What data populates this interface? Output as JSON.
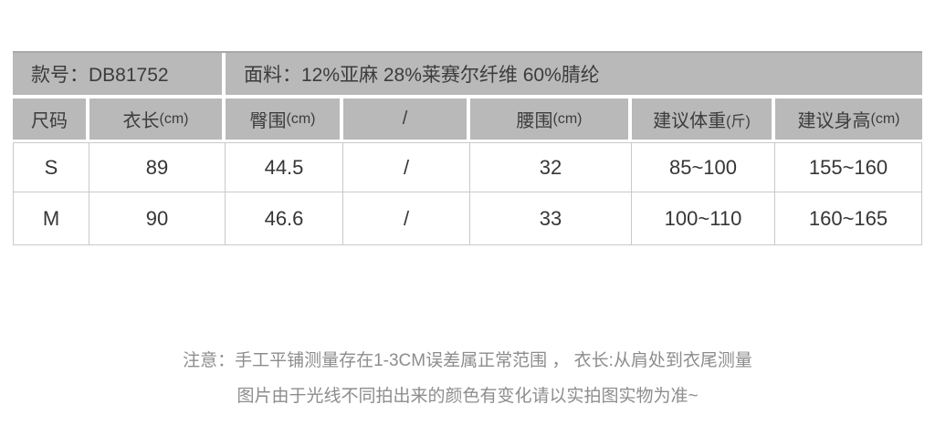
{
  "table": {
    "info": {
      "model": "款号：DB81752",
      "fabric": "面料：12%亚麻 28%莱赛尔纤维 60%腈纶"
    },
    "columns": [
      {
        "label": "尺码",
        "unit": ""
      },
      {
        "label": "衣长",
        "unit": "(cm)"
      },
      {
        "label": "臀围",
        "unit": "(cm)"
      },
      {
        "label": "/",
        "unit": ""
      },
      {
        "label": "腰围",
        "unit": "(cm)"
      },
      {
        "label": "建议体重",
        "unit": "(斤)"
      },
      {
        "label": "建议身高",
        "unit": "(cm)"
      }
    ],
    "rows": [
      {
        "cells": [
          "S",
          "89",
          "44.5",
          "/",
          "32",
          "85~100",
          "155~160"
        ]
      },
      {
        "cells": [
          "M",
          "90",
          "46.6",
          "/",
          "33",
          "100~110",
          "160~165"
        ]
      }
    ]
  },
  "notes": {
    "line1": "注意：手工平铺测量存在1-3CM误差属正常范围 ， 衣长:从肩处到衣尾测量",
    "line2": "图片由于光线不同拍出来的颜色有变化请以实拍图实物为准~"
  },
  "colors": {
    "header_bg": "#b9b9b9",
    "header_top_border": "#a8a8a8",
    "header_text": "#3c3c3c",
    "body_text": "#363636",
    "grid_line": "#c9c9c9",
    "note_text": "#8d8d8d",
    "page_bg": "#ffffff"
  }
}
